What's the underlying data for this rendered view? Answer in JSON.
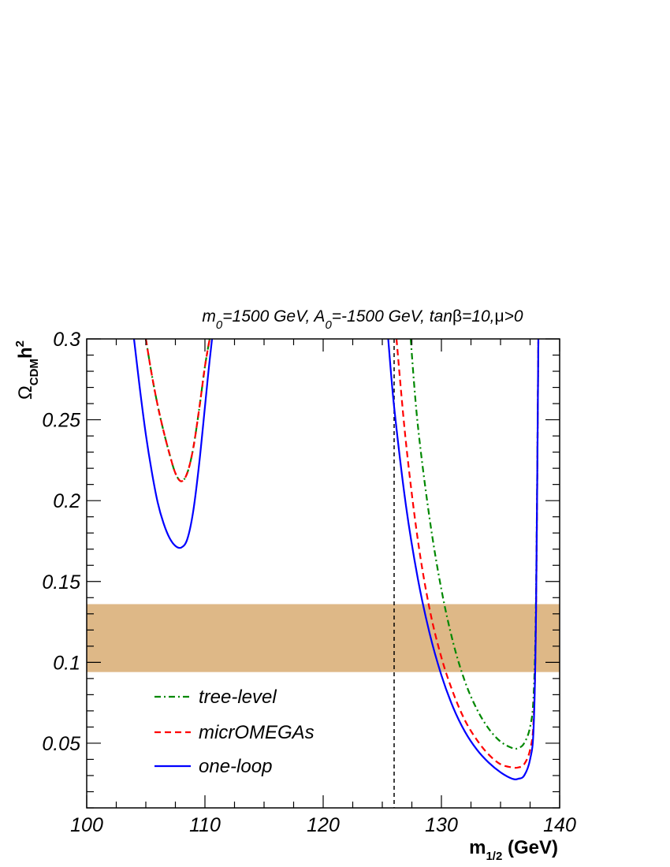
{
  "chart_data": {
    "type": "line",
    "title": "m₀=1500 GeV, A₀=-1500 GeV, tanβ=10,μ>0",
    "title_parts": [
      "m",
      "0",
      "=1500 GeV, A",
      "0",
      "=-1500 GeV, tan",
      "β",
      "=10,",
      "μ",
      ">0"
    ],
    "xlabel": "m1/2 (GeV)",
    "xlabel_parts": [
      "m",
      "1/2",
      " (GeV)"
    ],
    "ylabel": "ΩCDMh2",
    "ylabel_parts": [
      "Ω",
      "CDM",
      "h",
      "2"
    ],
    "xlim": [
      100,
      140
    ],
    "ylim": [
      0.01,
      0.3
    ],
    "x_ticks": [
      100,
      110,
      120,
      130,
      140
    ],
    "x_tick_labels": [
      "100",
      "110",
      "120",
      "130",
      "140"
    ],
    "y_ticks": [
      0.05,
      0.1,
      0.15,
      0.2,
      0.25,
      0.3
    ],
    "y_tick_labels": [
      "0.05",
      "0.1",
      "0.15",
      "0.2",
      "0.25",
      "0.3"
    ],
    "grid": false,
    "legend_position": "bottom-left",
    "band": {
      "y_min": 0.094,
      "y_max": 0.136,
      "color": "#deb887"
    },
    "vline": {
      "x": 126,
      "style": "dashed",
      "color": "#000000"
    },
    "series": [
      {
        "name": "tree-level",
        "color": "#008800",
        "style": "dashdot",
        "segments": [
          {
            "x": [
              105.0,
              105.5,
              106.0,
              106.5,
              107.0,
              107.5,
              108.0,
              108.5,
              109.0,
              109.5,
              110.0,
              110.4
            ],
            "y": [
              0.3,
              0.278,
              0.259,
              0.243,
              0.229,
              0.217,
              0.212,
              0.217,
              0.232,
              0.256,
              0.283,
              0.3
            ]
          },
          {
            "x": [
              127.4,
              128.0,
              129.0,
              130.0,
              131.0,
              132.0,
              133.0,
              134.0,
              135.0,
              136.0,
              136.5,
              137.0,
              137.5,
              137.8,
              138.0,
              138.2
            ],
            "y": [
              0.3,
              0.247,
              0.189,
              0.145,
              0.112,
              0.088,
              0.071,
              0.059,
              0.051,
              0.047,
              0.047,
              0.05,
              0.06,
              0.08,
              0.14,
              0.3
            ]
          }
        ]
      },
      {
        "name": "micrOMEGAs",
        "color": "#ff0000",
        "style": "dashed",
        "segments": [
          {
            "x": [
              105.0,
              105.5,
              106.0,
              106.5,
              107.0,
              107.5,
              108.0,
              108.5,
              109.0,
              109.5,
              110.0,
              110.4
            ],
            "y": [
              0.3,
              0.278,
              0.259,
              0.243,
              0.229,
              0.217,
              0.212,
              0.217,
              0.232,
              0.256,
              0.283,
              0.3
            ]
          },
          {
            "x": [
              126.2,
              127.0,
              128.0,
              129.0,
              130.0,
              131.0,
              132.0,
              133.0,
              134.0,
              135.0,
              136.0,
              136.5,
              137.0,
              137.5,
              137.8,
              138.0,
              138.2
            ],
            "y": [
              0.3,
              0.236,
              0.176,
              0.133,
              0.103,
              0.081,
              0.064,
              0.052,
              0.043,
              0.037,
              0.035,
              0.035,
              0.037,
              0.046,
              0.065,
              0.13,
              0.3
            ]
          }
        ]
      },
      {
        "name": "one-loop",
        "color": "#0000ff",
        "style": "solid",
        "segments": [
          {
            "x": [
              104.0,
              104.5,
              105.0,
              105.5,
              106.0,
              106.5,
              107.0,
              107.5,
              108.0,
              108.5,
              109.0,
              109.5,
              110.0,
              110.3,
              110.6
            ],
            "y": [
              0.3,
              0.269,
              0.241,
              0.218,
              0.199,
              0.186,
              0.177,
              0.172,
              0.171,
              0.176,
              0.193,
              0.222,
              0.258,
              0.28,
              0.3
            ]
          },
          {
            "x": [
              125.5,
              126.0,
              127.0,
              128.0,
              129.0,
              130.0,
              131.0,
              132.0,
              133.0,
              134.0,
              135.0,
              136.0,
              136.5,
              137.0,
              137.5,
              137.8,
              138.0,
              138.2
            ],
            "y": [
              0.3,
              0.258,
              0.197,
              0.152,
              0.118,
              0.092,
              0.072,
              0.057,
              0.046,
              0.038,
              0.032,
              0.028,
              0.028,
              0.03,
              0.04,
              0.06,
              0.13,
              0.3
            ]
          }
        ]
      }
    ]
  }
}
